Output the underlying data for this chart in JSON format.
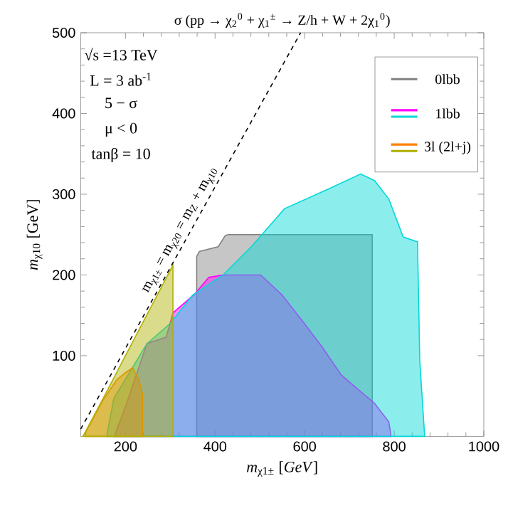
{
  "chart_data": {
    "type": "area",
    "title": "σ (pp → χ$_{2}$$^{0}$ + χ$_{1}$$^{±}$ → Z/h + W + 2χ$_{1}$$^{0}$)",
    "xlabel": "*m*$_{χ1±}$ [*GeV*]",
    "ylabel": "*m*$_{χ10}$ [GeV]",
    "xlim": [
      100,
      1000
    ],
    "ylim": [
      0,
      500
    ],
    "xticks": [
      200,
      400,
      600,
      800,
      1000
    ],
    "yticks": [
      100,
      200,
      300,
      400,
      500
    ],
    "legend": "top right",
    "marker": "none",
    "annotations": [
      "√s =13 TeV",
      "L = 3 ab$^{-1}$",
      "5 − σ",
      "μ < 0",
      "tanβ = 10",
      {
        "text": "m$_{χ1±}$ = m$_{χ20}$ = m$_{Z}$ + m$_{χ10}$",
        "x": 341,
        "y": 250
      }
    ],
    "series": [
      {
        "name": "0lbb",
        "color": "#808080",
        "x": [
          359,
          359,
          365,
          407,
          423,
          430,
          751,
          751
        ],
        "values": [
          0,
          223,
          229,
          235,
          249,
          250,
          250,
          0
        ]
      },
      {
        "name": "1lbb",
        "color": "#ff00ff",
        "x": [
          175,
          200,
          248,
          291,
          306,
          354,
          386,
          418,
          502,
          550,
          598,
          640,
          682,
          720,
          756,
          788,
          793
        ],
        "values": [
          0,
          37,
          115,
          123,
          153,
          176,
          197,
          200,
          200,
          175,
          141,
          110,
          76,
          58,
          41,
          18,
          0
        ]
      },
      {
        "color": "#00d8d8",
        "x": [
          158,
          174,
          248,
          300,
          350,
          418,
          481,
          555,
          651,
          725,
          756,
          788,
          820,
          852,
          857,
          868
        ],
        "values": [
          0,
          47,
          115,
          140,
          175,
          200,
          235,
          282,
          306,
          325,
          317,
          294,
          247,
          241,
          94,
          0
        ]
      },
      {
        "name": "3l (2l+j)",
        "color": "#ff8000",
        "x": [
          111,
          150,
          180,
          200,
          216,
          230,
          238
        ],
        "values": [
          5,
          45,
          70,
          79,
          85,
          70,
          53
        ]
      },
      {
        "color": "#b0b000",
        "x": [
          105,
          150,
          200,
          250,
          306
        ],
        "values": [
          0,
          47,
          100,
          153,
          212
        ]
      },
      {
        "type": "line",
        "color": "#000000",
        "line_style": "dashed",
        "x": [
          100,
          591
        ],
        "values": [
          9,
          500
        ]
      }
    ]
  }
}
